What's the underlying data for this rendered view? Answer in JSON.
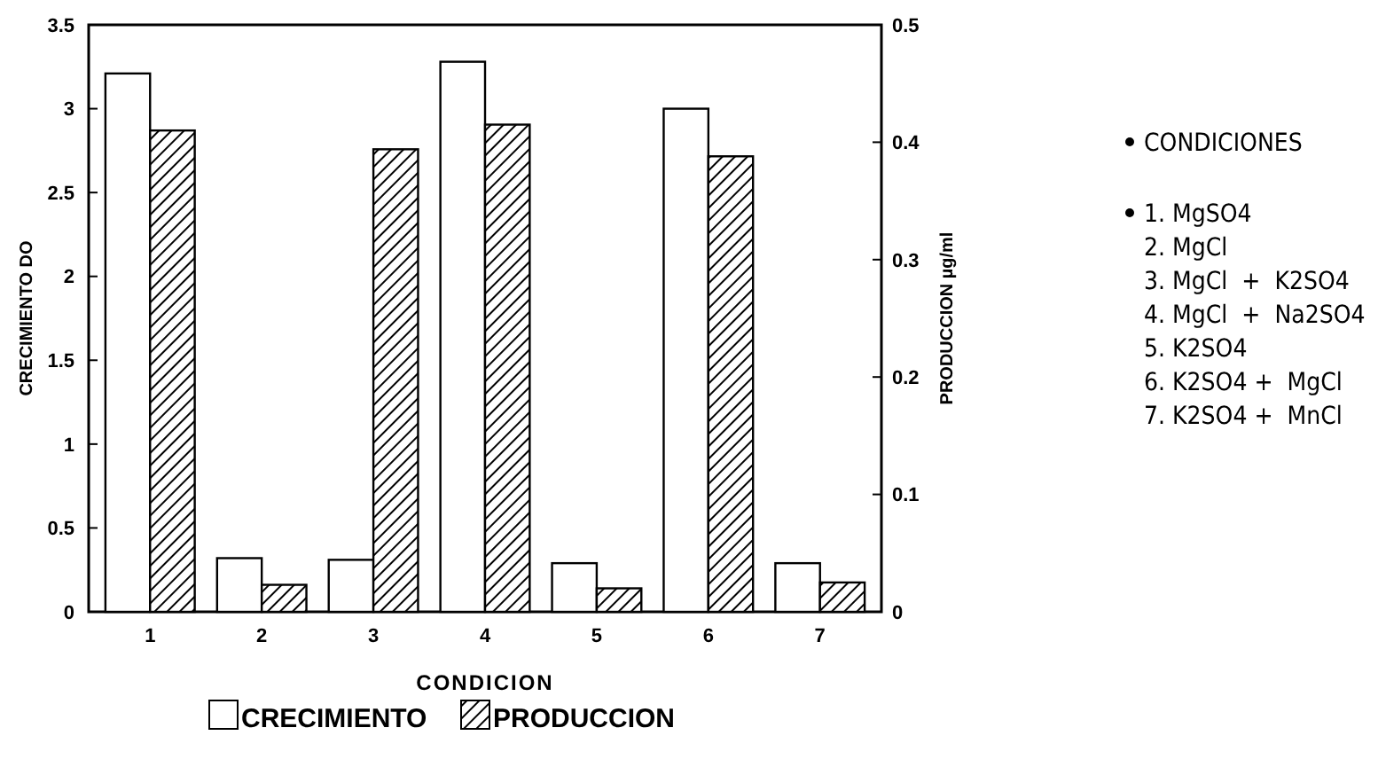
{
  "chart_data": {
    "type": "bar",
    "xlabel": "CONDICION",
    "ylabel": "CRECIMIENTO DO",
    "y2label": "PRODUCCION µg/ml",
    "categories": [
      "1",
      "2",
      "3",
      "4",
      "5",
      "6",
      "7"
    ],
    "series": [
      {
        "name": "CRECIMIENTO",
        "color": "#ffffff",
        "values": [
          3.21,
          0.32,
          0.31,
          3.28,
          0.29,
          3.0,
          0.29
        ]
      },
      {
        "name": "PRODUCCION",
        "color": "#000000",
        "axis": "y2",
        "values": [
          0.41,
          0.023,
          0.394,
          0.415,
          0.02,
          0.388,
          0.025
        ]
      }
    ],
    "ylim": [
      0,
      3.5
    ],
    "yticks": [
      0,
      0.5,
      1,
      1.5,
      2,
      2.5,
      3,
      3.5
    ],
    "y2lim": [
      0,
      0.5
    ],
    "y2ticks": [
      0,
      0.1,
      0.2,
      0.3,
      0.4,
      0.5
    ],
    "legend": "bottom",
    "annotations": [
      "CONDICIONES",
      "1. MgSO4",
      "2. MgCl",
      "3. MgCl  +  K2SO4",
      "4. MgCl  +  Na2SO4",
      "5. K2SO4",
      "6. K2SO4 +  MgCl",
      "7. K2SO4 +  MnCl"
    ]
  }
}
